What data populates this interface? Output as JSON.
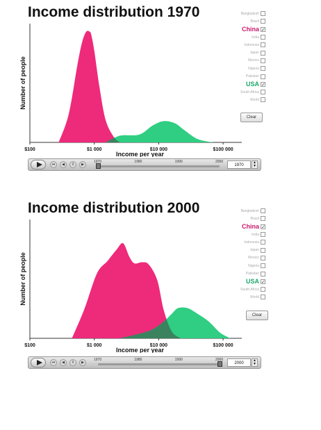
{
  "countries": [
    "Bangladesh",
    "Brazil",
    "China",
    "India",
    "Indonesia",
    "Japan",
    "Mexico",
    "Nigeria",
    "Pakistan",
    "USA",
    "South Africa",
    "World"
  ],
  "selected": [
    "China",
    "USA"
  ],
  "clear_label": "Clear",
  "colors": {
    "china": "#ee2a7b",
    "usa": "#2fce82",
    "overlap": "#3d7a5a",
    "china_label": "#c81a6e",
    "usa_label": "#1ba86a"
  },
  "icons": {
    "play": "play-icon",
    "rewind": "skip-back-icon",
    "step_back": "step-back-icon",
    "pause": "pause-icon",
    "step_forward": "step-forward-icon",
    "spinner": "spinner-icon"
  },
  "player_ticks": [
    "1970",
    "1980",
    "1990",
    "2000"
  ],
  "chart_data": [
    {
      "type": "area",
      "title": "Income distribution 1970",
      "xlabel": "Income per year",
      "ylabel": "Number of people",
      "x_scale": "log",
      "x_ticks": [
        "$100",
        "$1 000",
        "$10 000",
        "$100 000"
      ],
      "x_tick_values": [
        100,
        1000,
        10000,
        100000
      ],
      "xlim": [
        100,
        160000
      ],
      "ylim": [
        0,
        1
      ],
      "year": "1970",
      "series": [
        {
          "name": "China",
          "color": "#ee2a7b",
          "x": [
            280,
            400,
            550,
            650,
            750,
            850,
            900,
            1000,
            1200,
            1500,
            2000,
            2500
          ],
          "y": [
            0,
            0.25,
            0.7,
            0.9,
            0.99,
            0.99,
            0.96,
            0.82,
            0.5,
            0.2,
            0.05,
            0
          ]
        },
        {
          "name": "USA",
          "color": "#2fce82",
          "x": [
            1500,
            2500,
            5000,
            8000,
            12000,
            18000,
            25000,
            40000,
            70000
          ],
          "y": [
            0,
            0.06,
            0.07,
            0.15,
            0.19,
            0.17,
            0.11,
            0.03,
            0
          ]
        }
      ]
    },
    {
      "type": "area",
      "title": "Income distribution 2000",
      "xlabel": "Income per year",
      "ylabel": "Number of people",
      "x_scale": "log",
      "x_ticks": [
        "$100",
        "$1 000",
        "$10 000",
        "$100 000"
      ],
      "x_tick_values": [
        100,
        1000,
        10000,
        100000
      ],
      "xlim": [
        100,
        160000
      ],
      "ylim": [
        0,
        1
      ],
      "year": "2000",
      "series": [
        {
          "name": "China",
          "color": "#ee2a7b",
          "x": [
            450,
            700,
            1100,
            1600,
            2200,
            2800,
            3500,
            4200,
            5500,
            7000,
            9500,
            12000,
            16000,
            22000
          ],
          "y": [
            0,
            0.26,
            0.58,
            0.69,
            0.79,
            0.85,
            0.73,
            0.67,
            0.68,
            0.66,
            0.52,
            0.25,
            0.06,
            0
          ]
        },
        {
          "name": "USA",
          "color": "#2fce82",
          "x": [
            2500,
            5000,
            8000,
            12000,
            16000,
            20000,
            28000,
            40000,
            60000,
            90000,
            130000
          ],
          "y": [
            0,
            0.04,
            0.08,
            0.15,
            0.22,
            0.27,
            0.27,
            0.22,
            0.15,
            0.05,
            0
          ]
        }
      ]
    }
  ]
}
